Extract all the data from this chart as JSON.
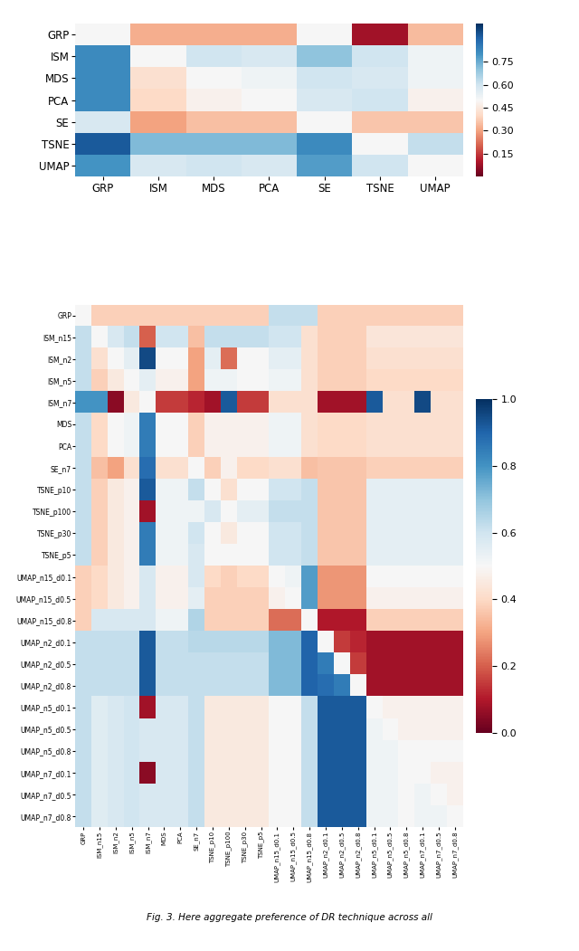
{
  "labels1": [
    "GRP",
    "ISM",
    "MDS",
    "PCA",
    "SE",
    "TSNE",
    "UMAP"
  ],
  "matrix1": [
    [
      0.5,
      0.32,
      0.32,
      0.32,
      0.5,
      0.08,
      0.34
    ],
    [
      0.82,
      0.5,
      0.6,
      0.58,
      0.7,
      0.6,
      0.52
    ],
    [
      0.82,
      0.42,
      0.5,
      0.52,
      0.6,
      0.58,
      0.52
    ],
    [
      0.82,
      0.4,
      0.48,
      0.5,
      0.58,
      0.6,
      0.48
    ],
    [
      0.58,
      0.3,
      0.35,
      0.35,
      0.5,
      0.36,
      0.36
    ],
    [
      0.92,
      0.72,
      0.72,
      0.72,
      0.82,
      0.5,
      0.62
    ],
    [
      0.8,
      0.58,
      0.6,
      0.58,
      0.78,
      0.6,
      0.5
    ]
  ],
  "vmin1": 0.0,
  "vmax1": 1.0,
  "cbar_ticks1": [
    0.15,
    0.3,
    0.45,
    0.6,
    0.75
  ],
  "labels2": [
    "GRP",
    "ISM_n15",
    "ISM_n2",
    "ISM_n5",
    "ISM_n7",
    "MDS",
    "PCA",
    "SE_n7",
    "TSNE_p10",
    "TSNE_p100",
    "TSNE_p30",
    "TSNE_p5",
    "UMAP_n15_d0.1",
    "UMAP_n15_d0.5",
    "UMAP_n15_d0.8",
    "UMAP_n2_d0.1",
    "UMAP_n2_d0.5",
    "UMAP_n2_d0.8",
    "UMAP_n5_d0.1",
    "UMAP_n5_d0.5",
    "UMAP_n5_d0.8",
    "UMAP_n7_d0.1",
    "UMAP_n7_d0.5",
    "UMAP_n7_d0.8"
  ],
  "matrix2": [
    [
      0.5,
      0.38,
      0.38,
      0.38,
      0.38,
      0.38,
      0.38,
      0.38,
      0.38,
      0.38,
      0.38,
      0.38,
      0.62,
      0.62,
      0.62,
      0.38,
      0.38,
      0.38,
      0.38,
      0.38,
      0.38,
      0.38,
      0.38,
      0.38
    ],
    [
      0.62,
      0.5,
      0.58,
      0.62,
      0.2,
      0.6,
      0.6,
      0.35,
      0.62,
      0.62,
      0.62,
      0.62,
      0.6,
      0.6,
      0.42,
      0.38,
      0.38,
      0.38,
      0.44,
      0.44,
      0.44,
      0.44,
      0.44,
      0.44
    ],
    [
      0.62,
      0.42,
      0.5,
      0.55,
      0.95,
      0.5,
      0.5,
      0.3,
      0.55,
      0.22,
      0.5,
      0.5,
      0.55,
      0.55,
      0.42,
      0.38,
      0.38,
      0.38,
      0.42,
      0.42,
      0.42,
      0.42,
      0.42,
      0.42
    ],
    [
      0.62,
      0.38,
      0.45,
      0.5,
      0.55,
      0.48,
      0.48,
      0.3,
      0.52,
      0.52,
      0.5,
      0.5,
      0.52,
      0.52,
      0.42,
      0.38,
      0.38,
      0.38,
      0.4,
      0.4,
      0.4,
      0.4,
      0.4,
      0.4
    ],
    [
      0.8,
      0.8,
      0.05,
      0.45,
      0.5,
      0.15,
      0.15,
      0.12,
      0.08,
      0.92,
      0.15,
      0.15,
      0.42,
      0.42,
      0.42,
      0.08,
      0.08,
      0.08,
      0.92,
      0.42,
      0.42,
      0.95,
      0.42,
      0.42
    ],
    [
      0.62,
      0.4,
      0.5,
      0.52,
      0.85,
      0.5,
      0.5,
      0.38,
      0.48,
      0.48,
      0.48,
      0.48,
      0.52,
      0.52,
      0.42,
      0.4,
      0.4,
      0.4,
      0.42,
      0.42,
      0.42,
      0.42,
      0.42,
      0.42
    ],
    [
      0.62,
      0.4,
      0.5,
      0.52,
      0.85,
      0.5,
      0.5,
      0.38,
      0.48,
      0.48,
      0.48,
      0.48,
      0.52,
      0.52,
      0.42,
      0.4,
      0.4,
      0.4,
      0.42,
      0.42,
      0.42,
      0.42,
      0.42,
      0.42
    ],
    [
      0.62,
      0.35,
      0.3,
      0.42,
      0.88,
      0.42,
      0.42,
      0.5,
      0.38,
      0.48,
      0.4,
      0.4,
      0.42,
      0.42,
      0.35,
      0.36,
      0.36,
      0.36,
      0.38,
      0.38,
      0.38,
      0.38,
      0.38,
      0.38
    ],
    [
      0.62,
      0.38,
      0.45,
      0.48,
      0.92,
      0.52,
      0.52,
      0.62,
      0.5,
      0.42,
      0.5,
      0.5,
      0.6,
      0.6,
      0.62,
      0.36,
      0.36,
      0.36,
      0.55,
      0.55,
      0.55,
      0.55,
      0.55,
      0.55
    ],
    [
      0.62,
      0.38,
      0.45,
      0.48,
      0.08,
      0.52,
      0.52,
      0.52,
      0.58,
      0.5,
      0.55,
      0.55,
      0.62,
      0.62,
      0.62,
      0.36,
      0.36,
      0.36,
      0.55,
      0.55,
      0.55,
      0.55,
      0.55,
      0.55
    ],
    [
      0.62,
      0.38,
      0.45,
      0.48,
      0.85,
      0.52,
      0.52,
      0.6,
      0.5,
      0.45,
      0.5,
      0.5,
      0.6,
      0.6,
      0.62,
      0.36,
      0.36,
      0.36,
      0.55,
      0.55,
      0.55,
      0.55,
      0.55,
      0.55
    ],
    [
      0.62,
      0.38,
      0.45,
      0.48,
      0.85,
      0.52,
      0.52,
      0.58,
      0.5,
      0.5,
      0.5,
      0.5,
      0.6,
      0.6,
      0.62,
      0.36,
      0.36,
      0.36,
      0.55,
      0.55,
      0.55,
      0.55,
      0.55,
      0.55
    ],
    [
      0.38,
      0.4,
      0.45,
      0.48,
      0.58,
      0.48,
      0.48,
      0.58,
      0.4,
      0.38,
      0.4,
      0.4,
      0.5,
      0.52,
      0.78,
      0.28,
      0.28,
      0.28,
      0.5,
      0.5,
      0.5,
      0.5,
      0.5,
      0.5
    ],
    [
      0.38,
      0.4,
      0.45,
      0.48,
      0.58,
      0.48,
      0.48,
      0.55,
      0.38,
      0.38,
      0.38,
      0.38,
      0.48,
      0.5,
      0.78,
      0.28,
      0.28,
      0.28,
      0.48,
      0.48,
      0.48,
      0.48,
      0.48,
      0.48
    ],
    [
      0.38,
      0.58,
      0.58,
      0.58,
      0.58,
      0.52,
      0.52,
      0.65,
      0.38,
      0.38,
      0.38,
      0.38,
      0.22,
      0.22,
      0.5,
      0.1,
      0.1,
      0.1,
      0.38,
      0.38,
      0.38,
      0.38,
      0.38,
      0.38
    ],
    [
      0.62,
      0.62,
      0.62,
      0.62,
      0.92,
      0.62,
      0.62,
      0.64,
      0.64,
      0.64,
      0.64,
      0.64,
      0.72,
      0.72,
      0.9,
      0.5,
      0.15,
      0.12,
      0.08,
      0.08,
      0.08,
      0.08,
      0.08,
      0.08
    ],
    [
      0.62,
      0.62,
      0.62,
      0.62,
      0.92,
      0.62,
      0.62,
      0.62,
      0.62,
      0.62,
      0.62,
      0.62,
      0.72,
      0.72,
      0.9,
      0.85,
      0.5,
      0.15,
      0.08,
      0.08,
      0.08,
      0.08,
      0.08,
      0.08
    ],
    [
      0.62,
      0.62,
      0.62,
      0.62,
      0.92,
      0.62,
      0.62,
      0.62,
      0.62,
      0.62,
      0.62,
      0.62,
      0.72,
      0.72,
      0.9,
      0.88,
      0.85,
      0.5,
      0.08,
      0.08,
      0.08,
      0.08,
      0.08,
      0.08
    ],
    [
      0.62,
      0.56,
      0.58,
      0.6,
      0.08,
      0.58,
      0.58,
      0.62,
      0.45,
      0.45,
      0.45,
      0.45,
      0.5,
      0.5,
      0.62,
      0.92,
      0.92,
      0.92,
      0.5,
      0.48,
      0.48,
      0.48,
      0.48,
      0.48
    ],
    [
      0.62,
      0.56,
      0.58,
      0.6,
      0.58,
      0.58,
      0.58,
      0.62,
      0.45,
      0.45,
      0.45,
      0.45,
      0.5,
      0.5,
      0.62,
      0.92,
      0.92,
      0.92,
      0.52,
      0.5,
      0.48,
      0.48,
      0.48,
      0.48
    ],
    [
      0.62,
      0.56,
      0.58,
      0.6,
      0.58,
      0.58,
      0.58,
      0.62,
      0.45,
      0.45,
      0.45,
      0.45,
      0.5,
      0.5,
      0.62,
      0.92,
      0.92,
      0.92,
      0.52,
      0.52,
      0.5,
      0.5,
      0.5,
      0.5
    ],
    [
      0.62,
      0.56,
      0.58,
      0.6,
      0.05,
      0.58,
      0.58,
      0.62,
      0.45,
      0.45,
      0.45,
      0.45,
      0.5,
      0.5,
      0.62,
      0.92,
      0.92,
      0.92,
      0.52,
      0.52,
      0.5,
      0.5,
      0.48,
      0.48
    ],
    [
      0.62,
      0.56,
      0.58,
      0.6,
      0.58,
      0.58,
      0.58,
      0.62,
      0.45,
      0.45,
      0.45,
      0.45,
      0.5,
      0.5,
      0.62,
      0.92,
      0.92,
      0.92,
      0.52,
      0.52,
      0.5,
      0.52,
      0.5,
      0.48
    ],
    [
      0.62,
      0.56,
      0.58,
      0.6,
      0.58,
      0.58,
      0.58,
      0.62,
      0.45,
      0.45,
      0.45,
      0.45,
      0.5,
      0.5,
      0.62,
      0.92,
      0.92,
      0.92,
      0.52,
      0.52,
      0.5,
      0.52,
      0.52,
      0.5
    ]
  ],
  "vmin2": 0.0,
  "vmax2": 1.0,
  "cbar_ticks2": [
    0.0,
    0.2,
    0.4,
    0.6,
    0.8,
    1.0
  ],
  "caption": "Fig. 3. Here aggregate preference of DR technique across all"
}
